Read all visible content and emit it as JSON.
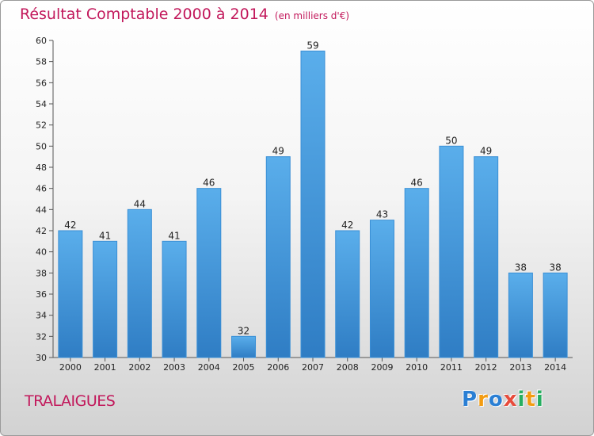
{
  "chart_data": {
    "type": "bar",
    "title": "Résultat Comptable 2000 à 2014",
    "unit": "(en milliers d'€)",
    "categories": [
      "2000",
      "2001",
      "2002",
      "2003",
      "2004",
      "2005",
      "2006",
      "2007",
      "2008",
      "2009",
      "2010",
      "2011",
      "2012",
      "2013",
      "2014"
    ],
    "values": [
      42,
      41,
      44,
      41,
      46,
      32,
      49,
      59,
      42,
      43,
      46,
      50,
      49,
      38,
      38
    ],
    "ylim": [
      30,
      60
    ],
    "yticks": [
      30,
      32,
      34,
      36,
      38,
      40,
      42,
      44,
      46,
      48,
      50,
      52,
      54,
      56,
      58,
      60
    ],
    "grid": false,
    "bar_color": "#4a9ee0"
  },
  "place": "TRALAIGUES",
  "logo": {
    "letters": [
      "P",
      "r",
      "o",
      "x",
      "i",
      "t",
      "i"
    ],
    "colors": [
      "#2a7fd4",
      "#f39c12",
      "#2a7fd4",
      "#e74c3c",
      "#27ae60",
      "#f39c12",
      "#27ae60"
    ]
  }
}
